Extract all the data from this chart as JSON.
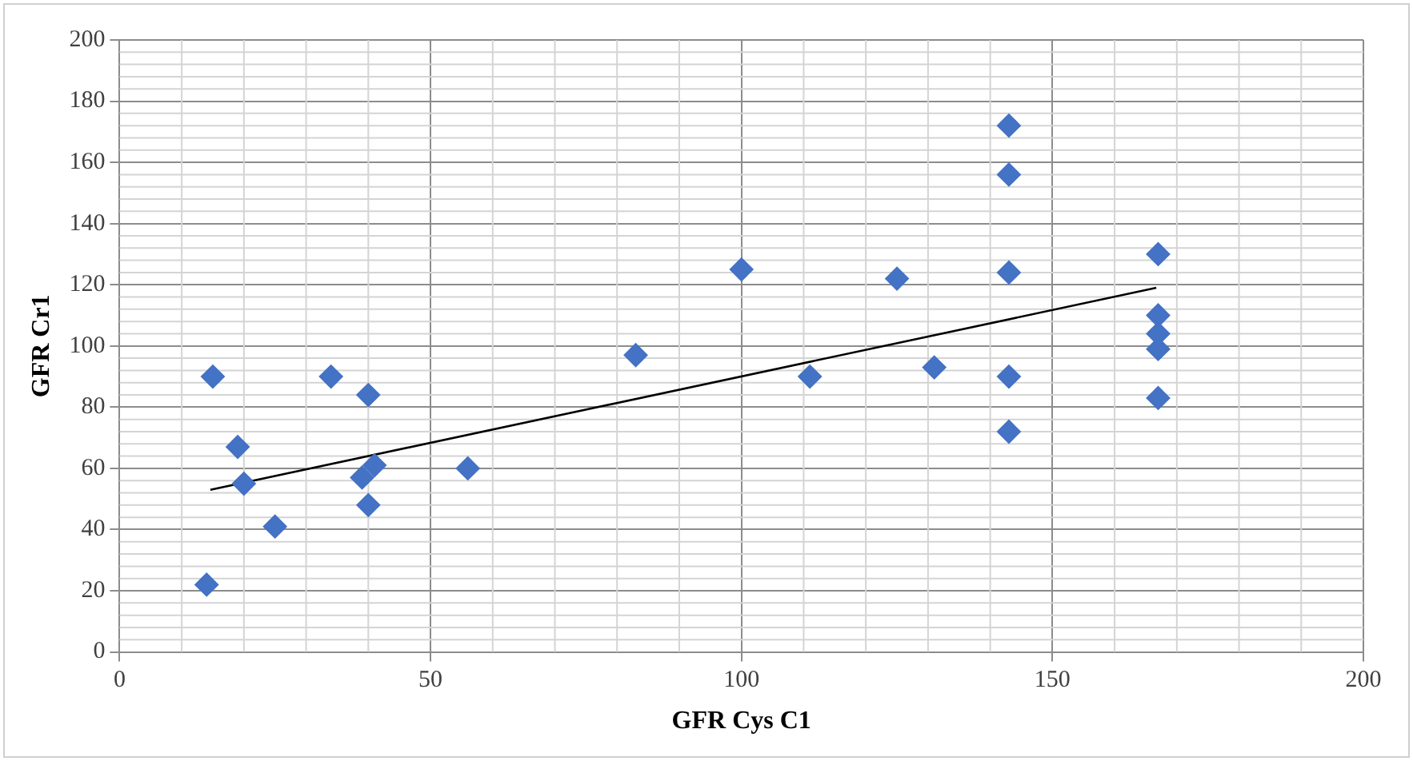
{
  "chart_data": {
    "type": "scatter",
    "xlabel": "GFR Cys C1",
    "ylabel": "GFR Cr1",
    "xlim": [
      0,
      200
    ],
    "xticks": [
      0,
      50,
      100,
      150,
      200
    ],
    "ylim": [
      0,
      200
    ],
    "yticks": [
      0,
      20,
      40,
      60,
      80,
      100,
      120,
      140,
      160,
      180,
      200
    ],
    "grid": true,
    "legend": false,
    "marker": "diamond",
    "series": [
      {
        "color": "#4472c4",
        "x": [
          15,
          19,
          20,
          14,
          25,
          34,
          40,
          41,
          39,
          40,
          56,
          83,
          100,
          111,
          125,
          131,
          143,
          143,
          143,
          143,
          143,
          167,
          167,
          167,
          167,
          167
        ],
        "values": [
          90,
          67,
          55,
          22,
          41,
          90,
          84,
          61,
          57,
          48,
          60,
          97,
          125,
          90,
          122,
          93,
          172,
          156,
          124,
          90,
          72,
          130,
          110,
          104,
          99,
          83
        ]
      },
      {
        "type": "line",
        "color": "#000000",
        "marker": "none",
        "x": [
          14.6,
          166.7
        ],
        "values": [
          53,
          119
        ]
      }
    ]
  }
}
